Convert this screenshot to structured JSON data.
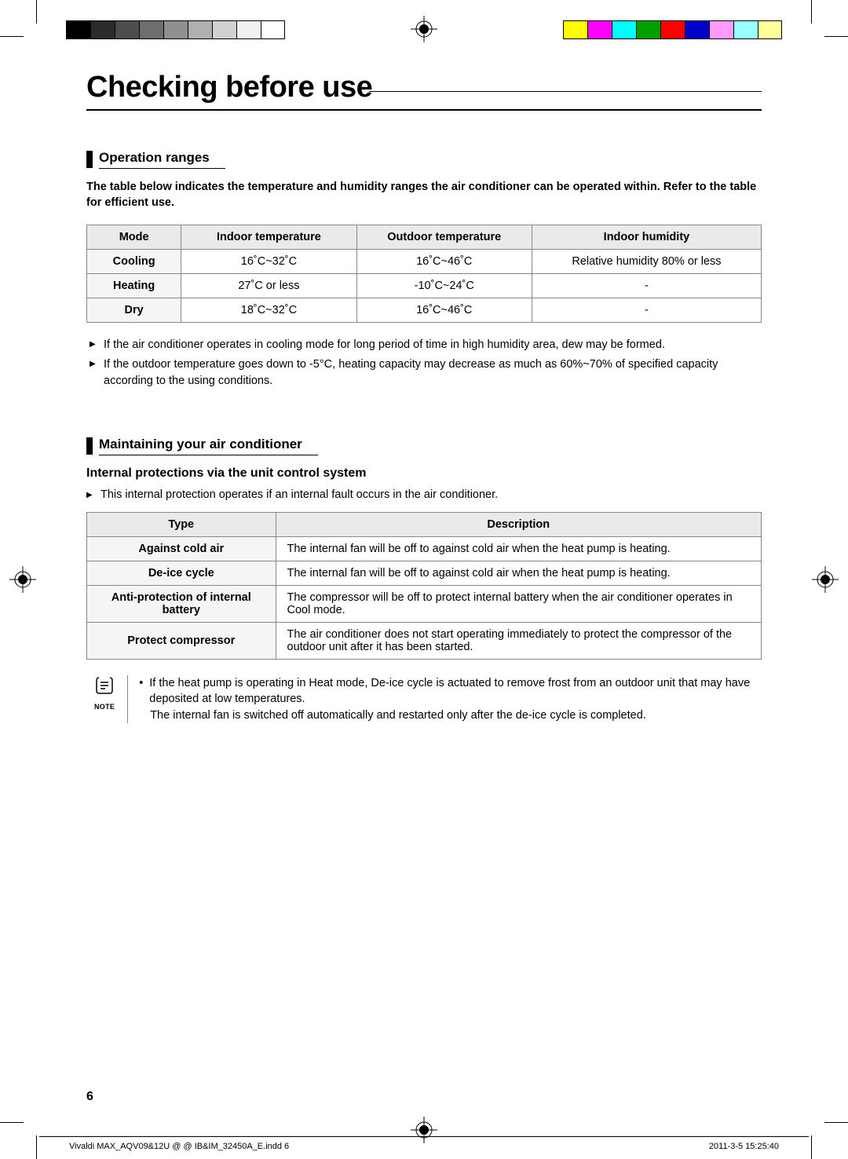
{
  "printer_marks": {
    "left_bar_colors": [
      "#000000",
      "#2b2b2b",
      "#4d4d4d",
      "#6e6e6e",
      "#8f8f8f",
      "#b0b0b0",
      "#d1d1d1",
      "#f0f0f0",
      "#ffffff"
    ],
    "right_bar_colors": [
      "#ffff00",
      "#ff00ff",
      "#00ffff",
      "#00a000",
      "#ff0000",
      "#0000c8",
      "#ff9aff",
      "#9affff",
      "#ffff9a"
    ]
  },
  "title": "Checking before use",
  "section1": {
    "heading": "Operation ranges",
    "intro": "The table below indicates the temperature and humidity ranges the air conditioner can be operated within. Refer to the table for efficient use.",
    "table": {
      "headers": [
        "Mode",
        "Indoor temperature",
        "Outdoor temperature",
        "Indoor humidity"
      ],
      "rows": [
        [
          "Cooling",
          "16˚C~32˚C",
          "16˚C~46˚C",
          "Relative humidity 80% or less"
        ],
        [
          "Heating",
          "27˚C or less",
          "-10˚C~24˚C",
          "-"
        ],
        [
          "Dry",
          "18˚C~32˚C",
          "16˚C~46˚C",
          "-"
        ]
      ],
      "col_widths_pct": [
        14,
        26,
        26,
        34
      ],
      "header_bg": "#eaeaea",
      "first_col_bg": "#f5f5f5",
      "border_color": "#888888"
    },
    "notes": [
      "If the air conditioner operates in cooling mode for long period of time in high humidity area, dew may be formed.",
      "If the outdoor temperature goes down to -5°C, heating capacity may decrease as much as 60%~70% of specified capacity according to the using conditions."
    ]
  },
  "section2": {
    "heading": "Maintaining your air conditioner",
    "sub_heading": "Internal protections via the unit control system",
    "intro": "This internal protection operates if an internal fault occurs in the air conditioner.",
    "table": {
      "headers": [
        "Type",
        "Description"
      ],
      "rows": [
        [
          "Against cold air",
          "The internal fan will be off to against cold air when the heat pump is heating."
        ],
        [
          "De-ice cycle",
          "The internal fan will be off to against cold air when the heat pump is heating."
        ],
        [
          "Anti-protection of internal battery",
          "The compressor will be off to protect internal battery when the air conditioner operates in Cool mode."
        ],
        [
          "Protect compressor",
          "The air conditioner does not start operating immediately to protect the compressor of the outdoor unit after it has been started."
        ]
      ],
      "col_widths_pct": [
        28,
        72
      ],
      "header_bg": "#eaeaea",
      "first_col_bg": "#f5f5f5",
      "border_color": "#888888"
    },
    "note": {
      "label": "NOTE",
      "lines": [
        "If the heat pump is operating in Heat mode, De-ice cycle is actuated to remove frost from an outdoor unit that may have deposited at low temperatures.",
        "The internal fan is switched off automatically and restarted only after the de-ice cycle is completed."
      ]
    }
  },
  "page_number": "6",
  "footer": {
    "left": "Vivaldi MAX_AQV09&12U @ @ IB&IM_32450A_E.indd   6",
    "right": "2011-3-5   15:25:40"
  }
}
